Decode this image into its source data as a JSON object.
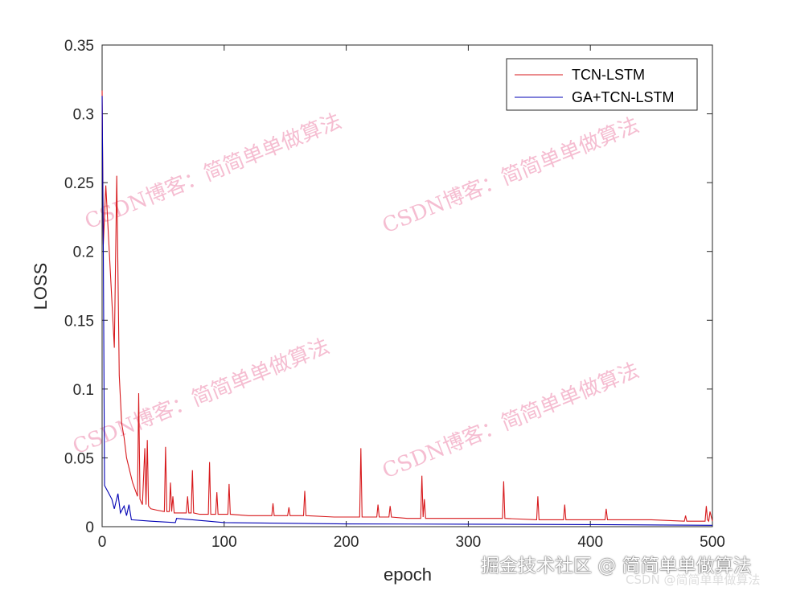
{
  "chart_data": {
    "type": "line",
    "title": "",
    "xlabel": "epoch",
    "ylabel": "LOSS",
    "xlim": [
      0,
      500
    ],
    "ylim": [
      0,
      0.35
    ],
    "xticks": [
      0,
      100,
      200,
      300,
      400,
      500
    ],
    "xtick_labels": [
      "0",
      "100",
      "200",
      "300",
      "400",
      "500"
    ],
    "yticks": [
      0,
      0.05,
      0.1,
      0.15,
      0.2,
      0.25,
      0.3,
      0.35
    ],
    "ytick_labels": [
      "0",
      "0.05",
      "0.1",
      "0.15",
      "0.2",
      "0.25",
      "0.3",
      "0.35"
    ],
    "grid": false,
    "legend_position": "top-right",
    "series": [
      {
        "name": "TCN-LSTM",
        "color": "#d7191c",
        "x": [
          0,
          1,
          3,
          10,
          12,
          14,
          16,
          18,
          20,
          25,
          29,
          30,
          31,
          33,
          35,
          36,
          37,
          38,
          40,
          45,
          51,
          52,
          53,
          55,
          56,
          57,
          58,
          59,
          65,
          69,
          70,
          71,
          73,
          74,
          75,
          80,
          87,
          88,
          89,
          93,
          94,
          95,
          103,
          104,
          105,
          120,
          139,
          140,
          141,
          152,
          153,
          154,
          165,
          166,
          167,
          190,
          211,
          212,
          213,
          225,
          226,
          227,
          235,
          236,
          237,
          250,
          261,
          262,
          263,
          264,
          265,
          300,
          328,
          329,
          330,
          356,
          357,
          358,
          378,
          379,
          380,
          412,
          413,
          414,
          450,
          477,
          478,
          479,
          494,
          495,
          496,
          497,
          498,
          500
        ],
        "y": [
          0.317,
          0.205,
          0.248,
          0.13,
          0.255,
          0.11,
          0.075,
          0.065,
          0.05,
          0.032,
          0.022,
          0.097,
          0.02,
          0.016,
          0.057,
          0.016,
          0.063,
          0.015,
          0.013,
          0.012,
          0.011,
          0.058,
          0.011,
          0.011,
          0.032,
          0.011,
          0.022,
          0.01,
          0.01,
          0.01,
          0.022,
          0.01,
          0.01,
          0.041,
          0.01,
          0.009,
          0.009,
          0.047,
          0.009,
          0.009,
          0.025,
          0.009,
          0.009,
          0.031,
          0.009,
          0.008,
          0.008,
          0.017,
          0.008,
          0.008,
          0.014,
          0.008,
          0.008,
          0.026,
          0.008,
          0.007,
          0.007,
          0.057,
          0.007,
          0.007,
          0.016,
          0.007,
          0.007,
          0.015,
          0.007,
          0.006,
          0.006,
          0.037,
          0.007,
          0.02,
          0.006,
          0.006,
          0.006,
          0.033,
          0.006,
          0.005,
          0.022,
          0.005,
          0.005,
          0.016,
          0.005,
          0.005,
          0.013,
          0.005,
          0.005,
          0.004,
          0.008,
          0.004,
          0.004,
          0.015,
          0.005,
          0.004,
          0.011,
          0.004
        ]
      },
      {
        "name": "GA+TCN-LSTM",
        "color": "#0000b4",
        "x": [
          0,
          1,
          2,
          5,
          8,
          10,
          13,
          15,
          18,
          20,
          22,
          24,
          40,
          60,
          61,
          100,
          200,
          300,
          400,
          500
        ],
        "y": [
          0.313,
          0.2,
          0.03,
          0.025,
          0.02,
          0.013,
          0.024,
          0.01,
          0.015,
          0.008,
          0.016,
          0.005,
          0.004,
          0.003,
          0.006,
          0.003,
          0.002,
          0.0018,
          0.0015,
          0.001
        ]
      }
    ]
  },
  "watermarks": [
    "CSDN博客：简简单单做算法",
    "CSDN博客：简简单单做算法",
    "CSDN博客：简简单单做算法",
    "CSDN博客：简简单单做算法"
  ],
  "footer": {
    "juejin": "掘金技术社区 @ 简简单单做算法",
    "csdn": "CSDN @简简单单做算法"
  }
}
